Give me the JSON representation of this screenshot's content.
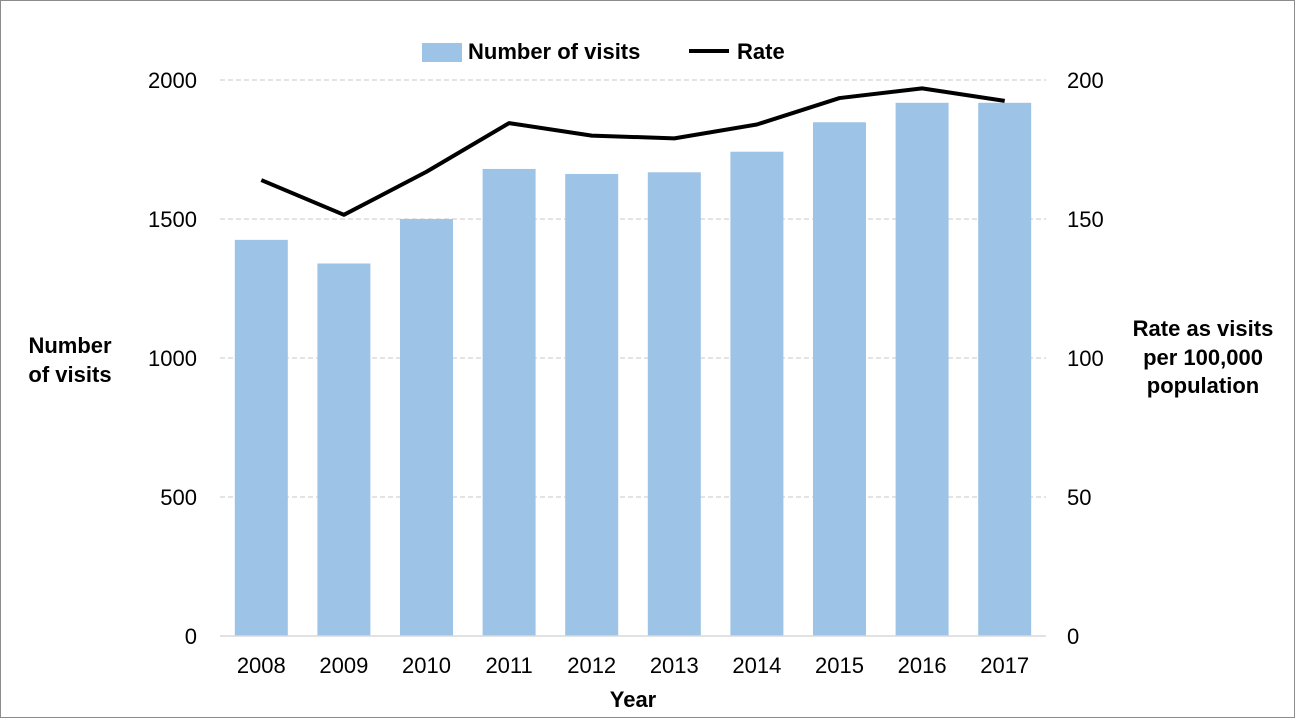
{
  "chart_data": {
    "type": "bar",
    "title": "",
    "x": [
      "2008",
      "2009",
      "2010",
      "2011",
      "2012",
      "2013",
      "2014",
      "2015",
      "2016",
      "2017"
    ],
    "xlabel": "Year",
    "ylabel_left": "Number of visits",
    "ylabel_right": "Rate as visits per 100,000 population",
    "ylim_left": [
      0,
      2000
    ],
    "ylim_right": [
      0,
      200
    ],
    "yticks_left": [
      "0",
      "500",
      "1000",
      "1500",
      "2000"
    ],
    "yticks_right": [
      "0",
      "50",
      "100",
      "150",
      "200"
    ],
    "grid": true,
    "legend_position": "top",
    "series": [
      {
        "name": "Number of visits",
        "type": "bar",
        "axis": "left",
        "color": "#9dc3e6",
        "values": [
          1425,
          1340,
          1500,
          1680,
          1662,
          1668,
          1742,
          1848,
          1918,
          1918
        ]
      },
      {
        "name": "Rate",
        "type": "line",
        "axis": "right",
        "color": "#000000",
        "values": [
          164,
          151.5,
          167,
          184.5,
          180,
          179,
          184,
          193.5,
          197,
          192.5
        ]
      }
    ]
  }
}
